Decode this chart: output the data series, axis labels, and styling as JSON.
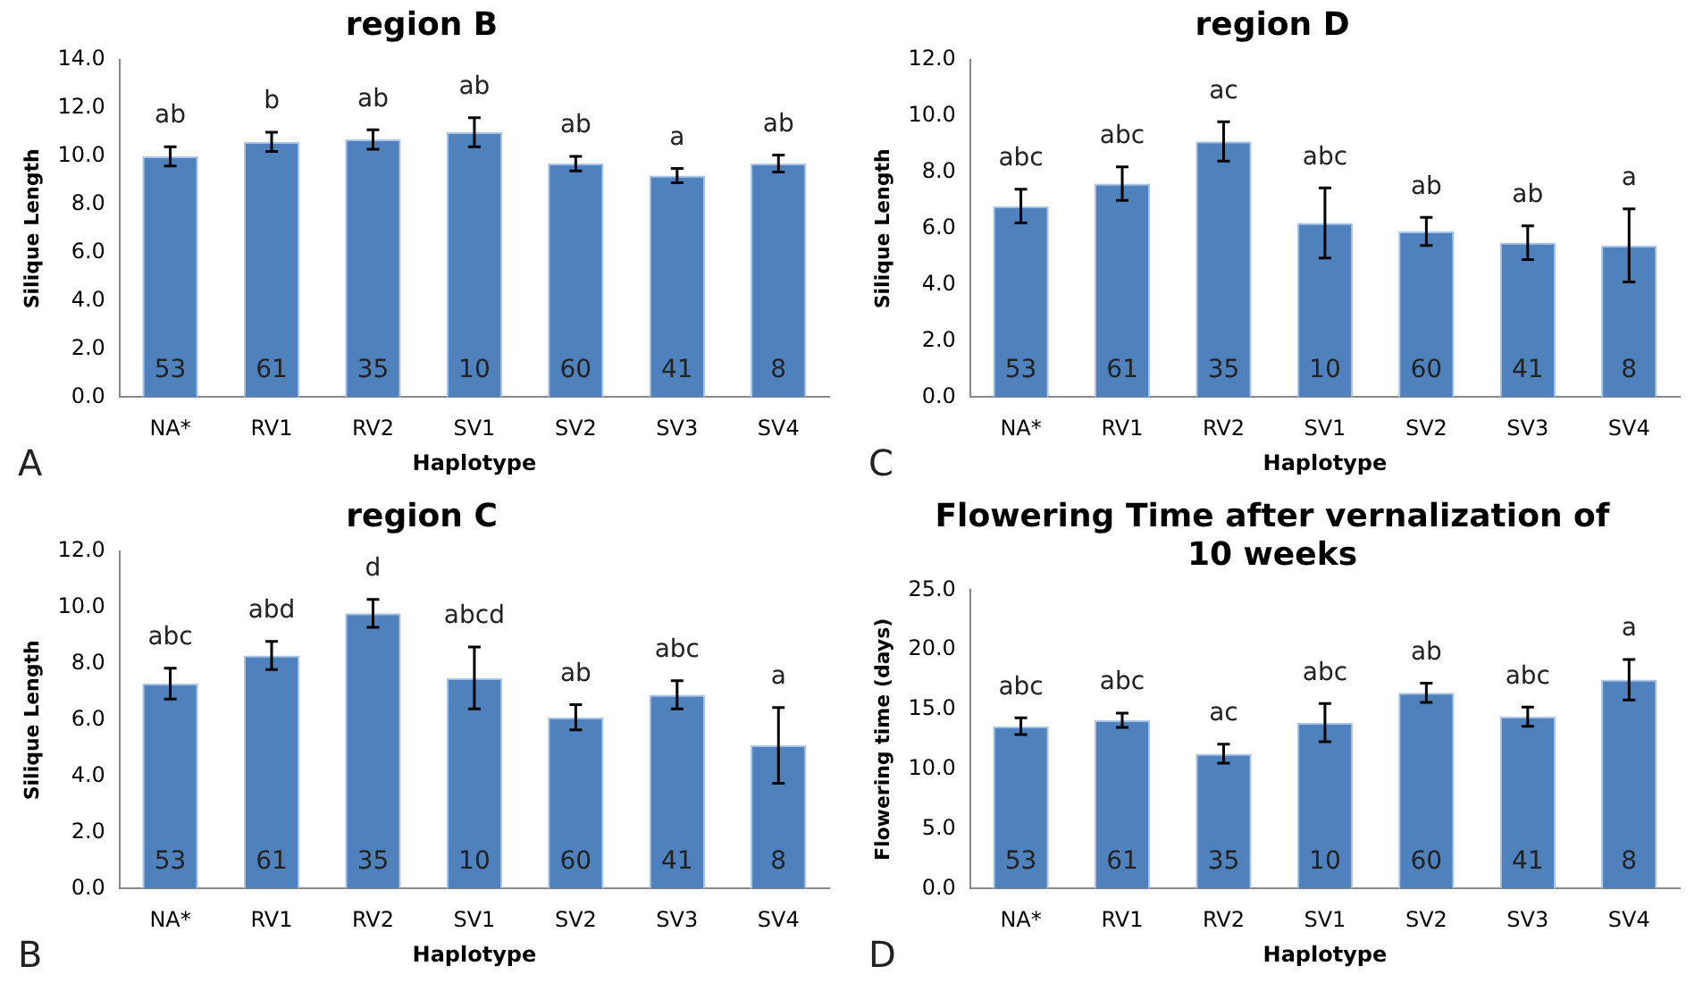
{
  "chart_data": [
    {
      "type": "bar",
      "title": "region B",
      "xlabel": "Haplotype",
      "ylabel": "Silique Length",
      "categories": [
        "NA*",
        "RV1",
        "RV2",
        "SV1",
        "SV2",
        "SV3",
        "SV4"
      ],
      "color": "#4f81bd",
      "values": [
        10.0,
        10.6,
        10.7,
        11.0,
        9.7,
        9.2,
        9.7
      ],
      "errors": [
        0.4,
        0.4,
        0.4,
        0.6,
        0.3,
        0.3,
        0.35
      ],
      "ylim": [
        0,
        14
      ],
      "yticks": [
        {
          "value": 0,
          "label": "0.0"
        },
        {
          "value": 2,
          "label": "2.0"
        },
        {
          "value": 4,
          "label": "4.0"
        },
        {
          "value": 6,
          "label": "6.0"
        },
        {
          "value": 8,
          "label": "8.0"
        },
        {
          "value": 10,
          "label": "10.0"
        },
        {
          "value": 12,
          "label": "12.0"
        },
        {
          "value": 14,
          "label": "14.0"
        }
      ],
      "annotations": [
        "A",
        "ab",
        "b",
        "ab",
        "ab",
        "ab",
        "a",
        "ab",
        "53",
        "61",
        "35",
        "10",
        "60",
        "41",
        "8"
      ]
    },
    {
      "type": "bar",
      "title": "region D",
      "xlabel": "Haplotype",
      "ylabel": "Silique Length",
      "categories": [
        "NA*",
        "RV1",
        "RV2",
        "SV1",
        "SV2",
        "SV3",
        "SV4"
      ],
      "color": "#4f81bd",
      "values": [
        6.8,
        7.6,
        9.1,
        6.2,
        5.9,
        5.5,
        5.4
      ],
      "errors": [
        0.6,
        0.6,
        0.7,
        1.25,
        0.5,
        0.6,
        1.3
      ],
      "ylim": [
        0,
        12
      ],
      "yticks": [
        {
          "value": 0,
          "label": "0.0"
        },
        {
          "value": 2,
          "label": "2.0"
        },
        {
          "value": 4,
          "label": "4.0"
        },
        {
          "value": 6,
          "label": "6.0"
        },
        {
          "value": 8,
          "label": "8.0"
        },
        {
          "value": 10,
          "label": "10.0"
        },
        {
          "value": 12,
          "label": "12.0"
        }
      ],
      "annotations": [
        "C",
        "abc",
        "abc",
        "ac",
        "abc",
        "ab",
        "ab",
        "a",
        "53",
        "61",
        "35",
        "10",
        "60",
        "41",
        "8"
      ]
    },
    {
      "type": "bar",
      "title": "region C",
      "xlabel": "Haplotype",
      "ylabel": "Silique Length",
      "categories": [
        "NA*",
        "RV1",
        "RV2",
        "SV1",
        "SV2",
        "SV3",
        "SV4"
      ],
      "color": "#4f81bd",
      "values": [
        7.3,
        8.3,
        9.8,
        7.5,
        6.1,
        6.9,
        5.1
      ],
      "errors": [
        0.55,
        0.5,
        0.5,
        1.1,
        0.45,
        0.5,
        1.35
      ],
      "ylim": [
        0,
        12
      ],
      "yticks": [
        {
          "value": 0,
          "label": "0.0"
        },
        {
          "value": 2,
          "label": "2.0"
        },
        {
          "value": 4,
          "label": "4.0"
        },
        {
          "value": 6,
          "label": "6.0"
        },
        {
          "value": 8,
          "label": "8.0"
        },
        {
          "value": 10,
          "label": "10.0"
        },
        {
          "value": 12,
          "label": "12.0"
        }
      ],
      "annotations": [
        "B",
        "abc",
        "abd",
        "d",
        "abcd",
        "ab",
        "abc",
        "a",
        "53",
        "61",
        "35",
        "10",
        "60",
        "41",
        "8"
      ]
    },
    {
      "type": "bar",
      "title": "Flowering Time after vernalization of 10 weeks",
      "xlabel": "Haplotype",
      "ylabel": "Flowering time (days)",
      "categories": [
        "NA*",
        "RV1",
        "RV2",
        "SV1",
        "SV2",
        "SV3",
        "SV4"
      ],
      "color": "#4f81bd",
      "values": [
        13.6,
        14.1,
        11.3,
        13.9,
        16.4,
        14.4,
        17.5
      ],
      "errors": [
        0.7,
        0.6,
        0.8,
        1.6,
        0.8,
        0.8,
        1.7
      ],
      "ylim": [
        0,
        25
      ],
      "yticks": [
        {
          "value": 0,
          "label": "0.0"
        },
        {
          "value": 5,
          "label": "5.0"
        },
        {
          "value": 10,
          "label": "10.0"
        },
        {
          "value": 15,
          "label": "15.0"
        },
        {
          "value": 20,
          "label": "20.0"
        },
        {
          "value": 25,
          "label": "25.0"
        }
      ],
      "annotations": [
        "D",
        "abc",
        "abc",
        "ac",
        "abc",
        "ab",
        "abc",
        "a",
        "53",
        "61",
        "35",
        "10",
        "60",
        "41",
        "8"
      ]
    }
  ]
}
